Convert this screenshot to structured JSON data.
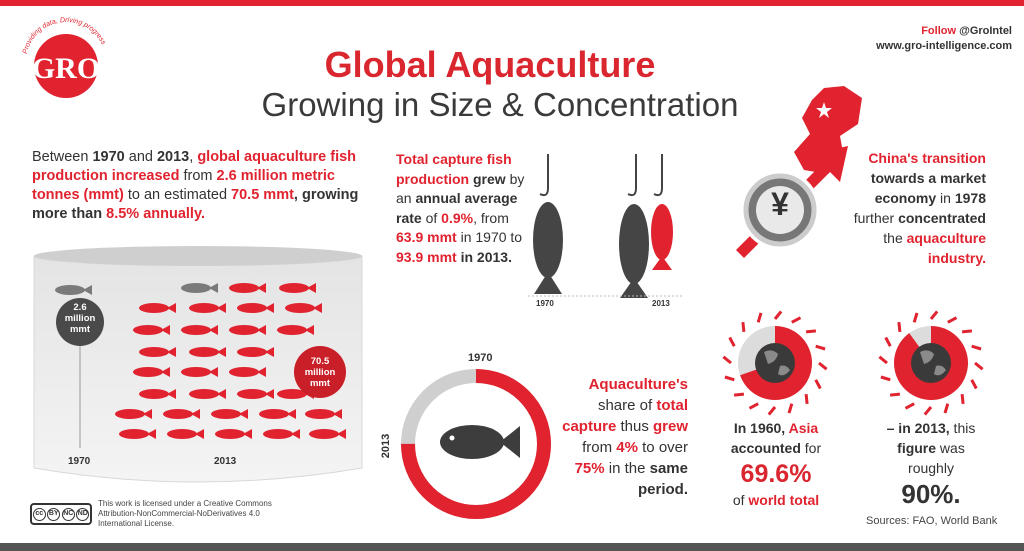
{
  "header": {
    "logo_text": "GRO",
    "logo_tagline": "Providing data, Driving progress",
    "title_line1": "Global Aquaculture",
    "title_line2": "Growing in Size & Concentration",
    "follow_prefix": "Follow",
    "follow_handle": "@GroIntel",
    "website": "www.gro-intelligence.com"
  },
  "section1": {
    "text": [
      {
        "t": "Between ",
        "s": "n"
      },
      {
        "t": "1970",
        "s": "b"
      },
      {
        "t": " and ",
        "s": "n"
      },
      {
        "t": "2013",
        "s": "b"
      },
      {
        "t": ", ",
        "s": "n"
      },
      {
        "t": "global aquaculture fish production increased",
        "s": "r"
      },
      {
        "t": " from ",
        "s": "n"
      },
      {
        "t": "2.6 million metric tonnes (mmt)",
        "s": "r"
      },
      {
        "t": " to an estimated ",
        "s": "n"
      },
      {
        "t": "70.5 mmt",
        "s": "r"
      },
      {
        "t": ", growing more than ",
        "s": "b"
      },
      {
        "t": "8.5% annually.",
        "s": "r"
      }
    ],
    "badge_1970": "2.6 million mmt",
    "badge_2013": "70.5 million mmt",
    "label_1970": "1970",
    "label_2013": "2013"
  },
  "section2": {
    "text": [
      {
        "t": "Total capture fish production",
        "s": "r"
      },
      {
        "t": " grew",
        "s": "b"
      },
      {
        "t": " by an ",
        "s": "n"
      },
      {
        "t": "annual average rate",
        "s": "b"
      },
      {
        "t": " of ",
        "s": "n"
      },
      {
        "t": "0.9%",
        "s": "r"
      },
      {
        "t": ", from ",
        "s": "n"
      },
      {
        "t": "63.9 mmt",
        "s": "r"
      },
      {
        "t": " in 1970 to ",
        "s": "n"
      },
      {
        "t": "93.9 mmt",
        "s": "r"
      },
      {
        "t": " in 2013.",
        "s": "b"
      }
    ],
    "label_1970": "1970",
    "label_2013": "2013"
  },
  "section3": {
    "text": [
      {
        "t": "Aquaculture's",
        "s": "r"
      },
      {
        "t": " share of ",
        "s": "n"
      },
      {
        "t": "total capture",
        "s": "r"
      },
      {
        "t": " thus ",
        "s": "n"
      },
      {
        "t": "grew",
        "s": "r"
      },
      {
        "t": " from ",
        "s": "n"
      },
      {
        "t": "4%",
        "s": "r"
      },
      {
        "t": " to over ",
        "s": "n"
      },
      {
        "t": "75%",
        "s": "r"
      },
      {
        "t": " in the ",
        "s": "n"
      },
      {
        "t": "same period.",
        "s": "b"
      }
    ],
    "ring_label_1970": "1970",
    "ring_label_2013": "2013",
    "share_start_pct": 4,
    "share_end_pct": 75
  },
  "section4": {
    "text": [
      {
        "t": "China's transition",
        "s": "r"
      },
      {
        "t": " towards a market economy",
        "s": "b"
      },
      {
        "t": " in ",
        "s": "n"
      },
      {
        "t": "1978",
        "s": "b"
      },
      {
        "t": " further ",
        "s": "n"
      },
      {
        "t": "concentrated",
        "s": "b"
      },
      {
        "t": " the ",
        "s": "n"
      },
      {
        "t": "aquaculture industry.",
        "s": "r"
      }
    ],
    "coin_symbol": "¥"
  },
  "section5": {
    "intro": [
      {
        "t": "In 1960, ",
        "s": "b"
      },
      {
        "t": "Asia",
        "s": "r"
      },
      {
        "t": " accounted",
        "s": "b"
      },
      {
        "t": " for",
        "s": "n"
      }
    ],
    "value": "69.6%",
    "tail": [
      {
        "t": "of ",
        "s": "n"
      },
      {
        "t": "world total",
        "s": "r"
      }
    ],
    "pct": 69.6
  },
  "section6": {
    "intro": [
      {
        "t": "– in 2013,",
        "s": "b"
      },
      {
        "t": " this ",
        "s": "n"
      },
      {
        "t": "figure",
        "s": "b"
      },
      {
        "t": " was roughly",
        "s": "n"
      }
    ],
    "value": "90%.",
    "pct": 90
  },
  "footer": {
    "license": "This work is licensed under a Creative Commons Attribution-NonCommercial-NoDerivatives 4.0 International License.",
    "cc_badges": [
      "BY",
      "NC",
      "ND"
    ],
    "sources": "Sources: FAO, World Bank"
  },
  "colors": {
    "accent": "#e0232f",
    "dark": "#3a3a3a",
    "gray": "#aaaaaa"
  }
}
